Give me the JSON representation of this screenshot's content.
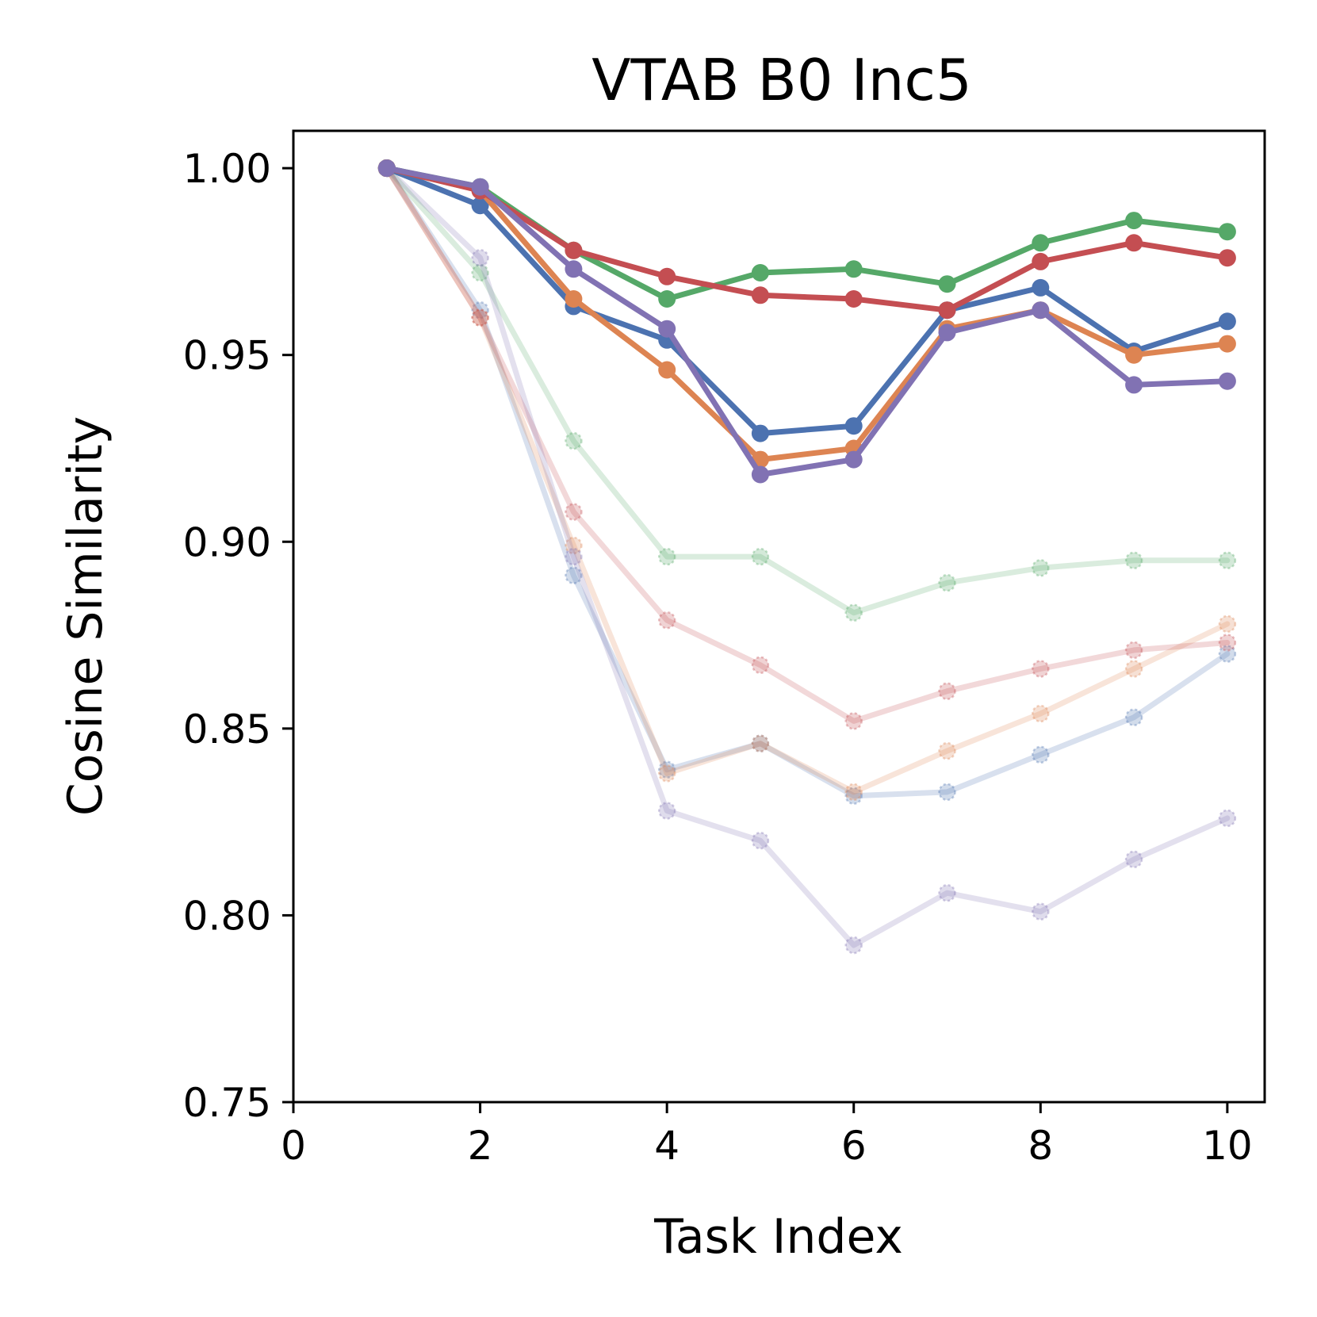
{
  "chart_data": {
    "type": "line",
    "title": "VTAB B0 Inc5",
    "xlabel": "Task Index",
    "ylabel": "Cosine Similarity",
    "xlim": [
      0,
      10.4
    ],
    "ylim": [
      0.75,
      1.01
    ],
    "xticks": [
      0,
      2,
      4,
      6,
      8,
      10
    ],
    "xtick_labels": [
      "0",
      "2",
      "4",
      "6",
      "8",
      "10"
    ],
    "yticks": [
      0.75,
      0.8,
      0.85,
      0.9,
      0.95,
      1.0
    ],
    "ytick_labels": [
      "0.75",
      "0.80",
      "0.85",
      "0.90",
      "0.95",
      "1.00"
    ],
    "grid": false,
    "x": [
      1,
      2,
      3,
      4,
      5,
      6,
      7,
      8,
      9,
      10
    ],
    "series": [
      {
        "name": "blue-faded",
        "color": "#4c72b0",
        "faded": true,
        "values": [
          1.0,
          0.962,
          0.891,
          0.839,
          0.846,
          0.832,
          0.833,
          0.843,
          0.853,
          0.87
        ]
      },
      {
        "name": "orange-faded",
        "color": "#dd8452",
        "faded": true,
        "values": [
          1.0,
          0.96,
          0.899,
          0.838,
          0.846,
          0.833,
          0.844,
          0.854,
          0.866,
          0.878
        ]
      },
      {
        "name": "green-faded",
        "color": "#55a868",
        "faded": true,
        "values": [
          1.0,
          0.972,
          0.927,
          0.896,
          0.896,
          0.881,
          0.889,
          0.893,
          0.895,
          0.895
        ]
      },
      {
        "name": "red-faded",
        "color": "#c44e52",
        "faded": true,
        "values": [
          1.0,
          0.96,
          0.908,
          0.879,
          0.867,
          0.852,
          0.86,
          0.866,
          0.871,
          0.873
        ]
      },
      {
        "name": "purple-faded",
        "color": "#8172b3",
        "faded": true,
        "values": [
          1.0,
          0.976,
          0.896,
          0.828,
          0.82,
          0.792,
          0.806,
          0.801,
          0.815,
          0.826
        ]
      },
      {
        "name": "blue",
        "color": "#4c72b0",
        "faded": false,
        "values": [
          1.0,
          0.99,
          0.963,
          0.954,
          0.929,
          0.931,
          0.962,
          0.968,
          0.951,
          0.959
        ]
      },
      {
        "name": "orange",
        "color": "#dd8452",
        "faded": false,
        "values": [
          1.0,
          0.994,
          0.965,
          0.946,
          0.922,
          0.925,
          0.957,
          0.962,
          0.95,
          0.953
        ]
      },
      {
        "name": "green",
        "color": "#55a868",
        "faded": false,
        "values": [
          1.0,
          0.995,
          0.978,
          0.965,
          0.972,
          0.973,
          0.969,
          0.98,
          0.986,
          0.983
        ]
      },
      {
        "name": "red",
        "color": "#c44e52",
        "faded": false,
        "values": [
          1.0,
          0.994,
          0.978,
          0.971,
          0.966,
          0.965,
          0.962,
          0.975,
          0.98,
          0.976
        ]
      },
      {
        "name": "purple",
        "color": "#8172b3",
        "faded": false,
        "values": [
          1.0,
          0.995,
          0.973,
          0.957,
          0.918,
          0.922,
          0.956,
          0.962,
          0.942,
          0.943
        ]
      }
    ]
  }
}
